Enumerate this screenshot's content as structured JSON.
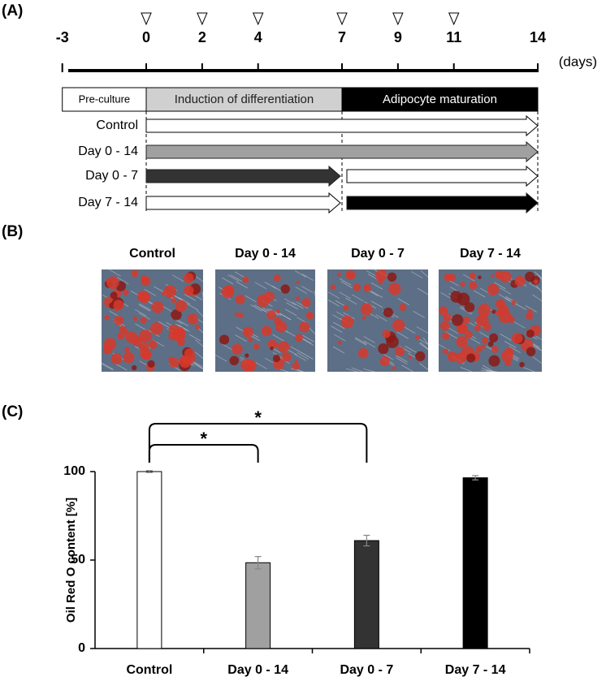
{
  "panels": {
    "a": "(A)",
    "b": "(B)",
    "c": "(C)"
  },
  "timeline": {
    "days": [
      -3,
      0,
      2,
      4,
      7,
      9,
      11,
      14
    ],
    "markers": [
      0,
      2,
      4,
      7,
      9,
      11
    ],
    "unit": "(days)",
    "phases": [
      {
        "label": "Pre-culture",
        "start": -3,
        "end": 0,
        "color": "#ffffff",
        "text_color": "#000000"
      },
      {
        "label": "Induction of differentiation",
        "start": 0,
        "end": 7,
        "color": "#d0d0d0",
        "text_color": "#222222"
      },
      {
        "label": "Adipocyte maturation",
        "start": 7,
        "end": 14,
        "color": "#000000",
        "text_color": "#ffffff"
      }
    ],
    "dividers": [
      0,
      7,
      14
    ],
    "groups": [
      {
        "label": "Control",
        "segments": [
          {
            "start": 0,
            "end": 14,
            "color": "#ffffff"
          }
        ]
      },
      {
        "label": "Day 0 - 14",
        "segments": [
          {
            "start": 0,
            "end": 14,
            "color": "#a0a0a0"
          }
        ]
      },
      {
        "label": "Day 0 - 7",
        "segments": [
          {
            "start": 0,
            "end": 7,
            "color": "#333333"
          },
          {
            "start": 7,
            "end": 14,
            "color": "#ffffff"
          }
        ]
      },
      {
        "label": "Day 7 - 14",
        "segments": [
          {
            "start": 0,
            "end": 7,
            "color": "#ffffff"
          },
          {
            "start": 7,
            "end": 14,
            "color": "#000000"
          }
        ]
      }
    ]
  },
  "images": {
    "labels": [
      "Control",
      "Day 0 - 14",
      "Day 0 - 7",
      "Day 7 - 14"
    ]
  },
  "chart_data": {
    "type": "bar",
    "y_label": "Oil Red O content [%]",
    "categories": [
      "Control",
      "Day 0 - 14",
      "Day 0 - 7",
      "Day 7 - 14"
    ],
    "values": [
      100,
      48.5,
      61,
      96.5
    ],
    "errors": [
      0.5,
      3.5,
      3,
      1.2
    ],
    "colors": [
      "#ffffff",
      "#a0a0a0",
      "#333333",
      "#000000"
    ],
    "ylim": [
      0,
      100
    ],
    "yticks": [
      0,
      50,
      100
    ],
    "significance": [
      {
        "from": 0,
        "to": 1,
        "label": "*"
      },
      {
        "from": 0,
        "to": 2,
        "label": "*"
      }
    ]
  }
}
